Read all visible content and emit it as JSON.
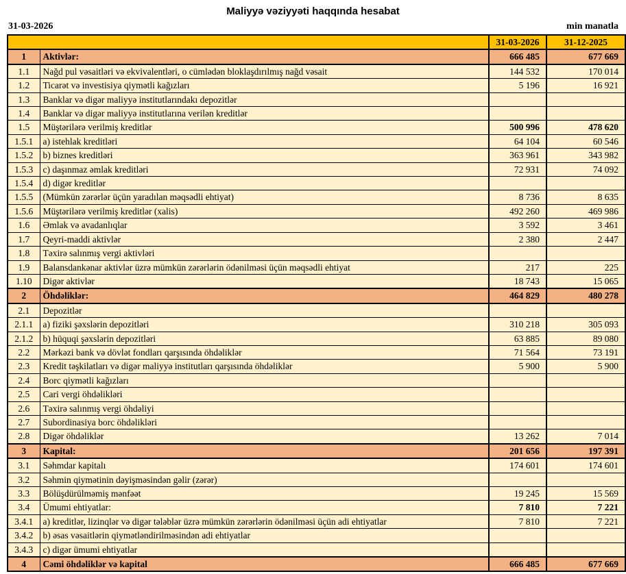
{
  "meta": {
    "title": "Maliyyə vəziyyəti haqqında hesabat",
    "report_date": "31-03-2026",
    "unit_label": "min manatla"
  },
  "colors": {
    "header_bg": "#FFC000",
    "section_bg": "#F4B183",
    "row_bg": "#FFF2CC",
    "border": "#000000"
  },
  "table": {
    "col1_header": "31-03-2026",
    "col2_header": "31-12-2025",
    "rows": [
      {
        "no": "1",
        "label": "Aktivlər:",
        "v1": "666 485",
        "v2": "677 669",
        "style": "section"
      },
      {
        "no": "1.1",
        "label": "Nağd pul vəsaitləri və ekvivalentləri, o cümlədən bloklaşdırılmış nağd vəsait",
        "v1": "144 532",
        "v2": "170 014"
      },
      {
        "no": "1.2",
        "label": "Ticarət və investisiya qiymətli kağızları",
        "v1": "5 196",
        "v2": "16 921"
      },
      {
        "no": "1.3",
        "label": "Banklar və digər maliyyə institutlarındakı depozitlər",
        "v1": "",
        "v2": ""
      },
      {
        "no": "1.4",
        "label": "Banklar və digər maliyyə institutlarına verilən kreditlər",
        "v1": "",
        "v2": ""
      },
      {
        "no": "1.5",
        "label": "Müştərilərə verilmiş kreditlər",
        "v1": "500 996",
        "v2": "478 620",
        "style": "boldvals"
      },
      {
        "no": "1.5.1",
        "label": "a) istehlak kreditləri",
        "v1": "64 104",
        "v2": "60 546"
      },
      {
        "no": "1.5.2",
        "label": "b) biznes kreditləri",
        "v1": "363 961",
        "v2": "343 982"
      },
      {
        "no": "1.5.3",
        "label": "c) daşınmaz əmlak kreditləri",
        "v1": "72 931",
        "v2": "74 092"
      },
      {
        "no": "1.5.4",
        "label": "d) digər kreditlər",
        "v1": "",
        "v2": ""
      },
      {
        "no": "1.5.5",
        "label": "(Mümkün zərərlər üçün yaradılan məqsədli ehtiyat)",
        "v1": "8 736",
        "v2": "8 635"
      },
      {
        "no": "1.5.6",
        "label": "Müştərilərə verilmiş kreditlər (xalis)",
        "v1": "492 260",
        "v2": "469 986"
      },
      {
        "no": "1.6",
        "label": "Əmlak və avadanlıqlar",
        "v1": "3 592",
        "v2": "3 461"
      },
      {
        "no": "1.7",
        "label": "Qeyri-maddi aktivlər",
        "v1": "2 380",
        "v2": "2 447"
      },
      {
        "no": "1.8",
        "label": "Təxirə salınmış vergi aktivləri",
        "v1": "",
        "v2": ""
      },
      {
        "no": "1.9",
        "label": "Balansdankənar aktivlər üzrə mümkün zərərlərin ödənilməsi üçün məqsədli ehtiyat",
        "v1": "217",
        "v2": "225"
      },
      {
        "no": "1.10",
        "label": "Digər aktivlər",
        "v1": "18 743",
        "v2": "15 065"
      },
      {
        "no": "2",
        "label": "Öhdəliklər:",
        "v1": "464 829",
        "v2": "480 278",
        "style": "section"
      },
      {
        "no": "2.1",
        "label": "Depozitlər",
        "v1": "",
        "v2": ""
      },
      {
        "no": "2.1.1",
        "label": "a) fiziki şəxslərin depozitləri",
        "v1": "310 218",
        "v2": "305 093"
      },
      {
        "no": "2.1.2",
        "label": "b) hüquqi şəxslərin depozitləri",
        "v1": "63 885",
        "v2": "89 080"
      },
      {
        "no": "2.2",
        "label": "Mərkəzi bank və dövlət fondları qarşısında öhdəliklər",
        "v1": "71 564",
        "v2": "73 191"
      },
      {
        "no": "2.3",
        "label": "Kredit təşkilatları və digər maliyyə institutları qarşısında öhdəliklər",
        "v1": "5 900",
        "v2": "5 900"
      },
      {
        "no": "2.4",
        "label": "Borc qiymətli kağızları",
        "v1": "",
        "v2": ""
      },
      {
        "no": "2.5",
        "label": "Cari vergi öhdəlikləri",
        "v1": "",
        "v2": ""
      },
      {
        "no": "2.6",
        "label": "Təxirə salınmış vergi öhdəliyi",
        "v1": "",
        "v2": ""
      },
      {
        "no": "2.7",
        "label": "Subordinasiya borc öhdəlikləri",
        "v1": "",
        "v2": ""
      },
      {
        "no": "2.8",
        "label": "Digər öhdəliklər",
        "v1": "13 262",
        "v2": "7 014"
      },
      {
        "no": "3",
        "label": "Kapital:",
        "v1": "201 656",
        "v2": "197 391",
        "style": "section"
      },
      {
        "no": "3.1",
        "label": "Səhmdar kapitalı",
        "v1": "174 601",
        "v2": "174 601"
      },
      {
        "no": "3.2",
        "label": "Səhmin qiymətinin dəyişməsindən gəlir (zərər)",
        "v1": "",
        "v2": ""
      },
      {
        "no": "3.3",
        "label": "Bölüşdürülməmiş mənfəət",
        "v1": "19 245",
        "v2": "15 569"
      },
      {
        "no": "3.4",
        "label": "Ümumi ehtiyatlar:",
        "v1": "7 810",
        "v2": "7 221",
        "style": "boldvals"
      },
      {
        "no": "3.4.1",
        "label": "a) kreditlər, lizinqlər və digər tələblər üzrə mümkün zərərlərin ödənilməsi üçün adi ehtiyatlar",
        "v1": "7 810",
        "v2": "7 221"
      },
      {
        "no": "3.4.2",
        "label": "b) əsas vəsaitlərin qiymətləndirilməsindən adi ehtiyatlar",
        "v1": "",
        "v2": ""
      },
      {
        "no": "3.4.3",
        "label": "c) digər ümumi ehtiyatlar",
        "v1": "",
        "v2": ""
      },
      {
        "no": "4",
        "label": "Cəmi öhdəliklər və kapital",
        "v1": "666 485",
        "v2": "677 669",
        "style": "section"
      }
    ]
  }
}
